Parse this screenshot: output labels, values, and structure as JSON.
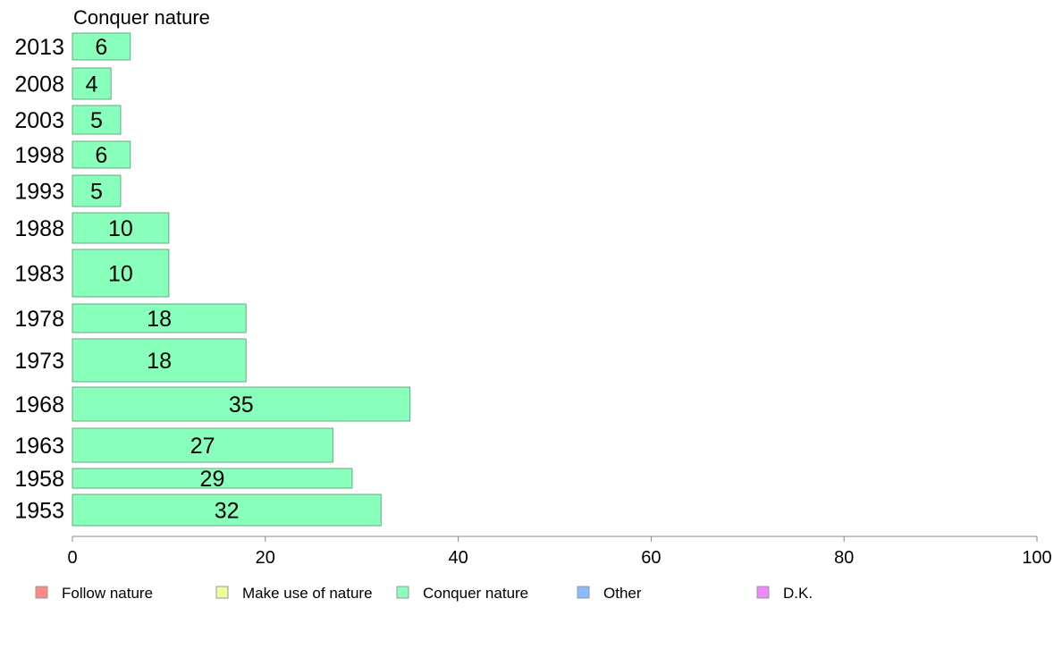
{
  "chart_data": {
    "type": "bar",
    "orientation": "horizontal",
    "title": "Conquer nature",
    "categories": [
      "2013",
      "2008",
      "2003",
      "1998",
      "1993",
      "1988",
      "1983",
      "1978",
      "1973",
      "1968",
      "1963",
      "1958",
      "1953"
    ],
    "series": [
      {
        "name": "Conquer nature",
        "color": "#88ffbb",
        "values": [
          6,
          4,
          5,
          6,
          5,
          10,
          10,
          18,
          18,
          35,
          27,
          29,
          32
        ]
      }
    ],
    "xlim": [
      0,
      100
    ],
    "xticks": [
      0,
      20,
      40,
      60,
      80,
      100
    ],
    "grid": false,
    "legend": {
      "placement": "bottom",
      "entries": [
        {
          "label": "Follow nature",
          "color": "#ff8888"
        },
        {
          "label": "Make use of nature",
          "color": "#eeff99"
        },
        {
          "label": "Conquer nature",
          "color": "#88ffbb"
        },
        {
          "label": "Other",
          "color": "#88bbff"
        },
        {
          "label": "D.K.",
          "color": "#ee88ff"
        }
      ]
    }
  }
}
